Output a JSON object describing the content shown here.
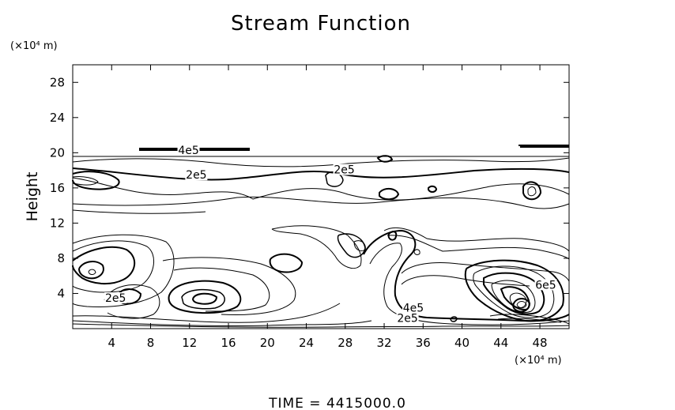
{
  "chart_data": {
    "type": "contour",
    "title": "Stream Function",
    "ylabel": "Height",
    "x_unit": "(×10⁴ m)",
    "y_unit": "(×10⁴ m)",
    "xlim": [
      0,
      51
    ],
    "ylim": [
      0,
      30
    ],
    "x_ticks": [
      4,
      8,
      12,
      16,
      20,
      24,
      28,
      32,
      36,
      40,
      44,
      48
    ],
    "y_ticks": [
      4,
      8,
      12,
      16,
      20,
      24,
      28
    ],
    "contour_labels": [
      {
        "text": "4e5",
        "x": 11.9,
        "y": 20.3
      },
      {
        "text": "2e5",
        "x": 12.7,
        "y": 17.5
      },
      {
        "text": "2e5",
        "x": 27.9,
        "y": 18.1
      },
      {
        "text": "2e5",
        "x": 4.4,
        "y": 3.5
      },
      {
        "text": "4e5",
        "x": 35.0,
        "y": 2.4
      },
      {
        "text": "2e5",
        "x": 34.4,
        "y": 1.2
      },
      {
        "text": "6e5",
        "x": 48.6,
        "y": 5.0
      }
    ],
    "footer": "TIME  =  4415000.0"
  }
}
